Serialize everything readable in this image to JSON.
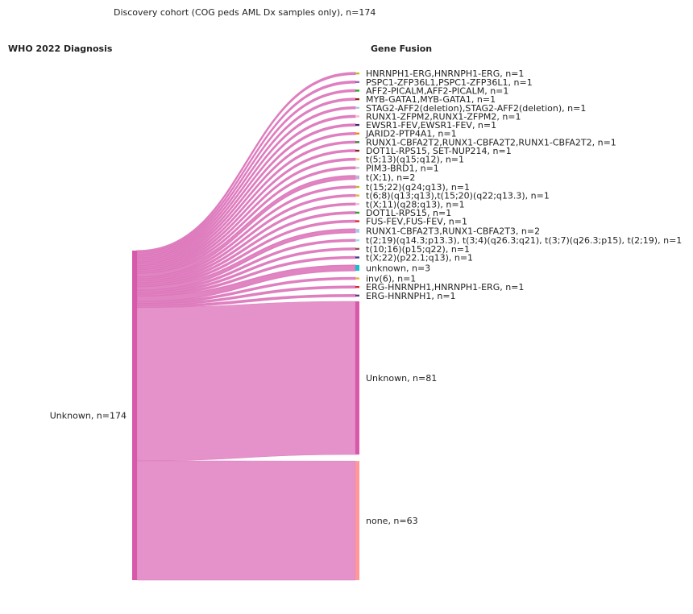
{
  "chart_data": {
    "type": "sankey",
    "title": "Discovery cohort (COG peds AML Dx samples only), n=174",
    "left_header": "WHO 2022 Diagnosis",
    "right_header": "Gene Fusion",
    "source": {
      "name": "Unknown",
      "label": "Unknown, n=174",
      "value": 174,
      "color": "#d65aa9"
    },
    "link_color": "#dd77bb",
    "targets": [
      {
        "name": "HNRNPH1-ERG,HNRNPH1-ERG",
        "label": "HNRNPH1-ERG,HNRNPH1-ERG, n=1",
        "value": 1,
        "color": "#bcbd22"
      },
      {
        "name": "PSPC1-ZFP36L1,PSPC1-ZFP36L1",
        "label": "PSPC1-ZFP36L1,PSPC1-ZFP36L1, n=1",
        "value": 1,
        "color": "#9467bd"
      },
      {
        "name": "AFF2-PICALM,AFF2-PICALM",
        "label": "AFF2-PICALM,AFF2-PICALM, n=1",
        "value": 1,
        "color": "#2ca02c"
      },
      {
        "name": "MYB-GATA1,MYB-GATA1",
        "label": "MYB-GATA1,MYB-GATA1, n=1",
        "value": 1,
        "color": "#8c2d19"
      },
      {
        "name": "STAG2-AFF2(deletion),STAG2-AFF2(deletion)",
        "label": "STAG2-AFF2(deletion),STAG2-AFF2(deletion), n=1",
        "value": 1,
        "color": "#aec7e8"
      },
      {
        "name": "RUNX1-ZFPM2,RUNX1-ZFPM2",
        "label": "RUNX1-ZFPM2,RUNX1-ZFPM2, n=1",
        "value": 1,
        "color": "#f7b6d2"
      },
      {
        "name": "EWSR1-FEV,EWSR1-FEV",
        "label": "EWSR1-FEV,EWSR1-FEV, n=1",
        "value": 1,
        "color": "#3b2a6b"
      },
      {
        "name": "JARID2-PTP4A1",
        "label": "JARID2-PTP4A1, n=1",
        "value": 1,
        "color": "#ff7f0e"
      },
      {
        "name": "RUNX1-CBFA2T2,RUNX1-CBFA2T2,RUNX1-CBFA2T2",
        "label": "RUNX1-CBFA2T2,RUNX1-CBFA2T2,RUNX1-CBFA2T2, n=1",
        "value": 1,
        "color": "#3a7d3a"
      },
      {
        "name": "DOT1L-RPS15, SET-NUP214",
        "label": "DOT1L-RPS15, SET-NUP214, n=1",
        "value": 1,
        "color": "#7f1f1f"
      },
      {
        "name": "t(5;13)(q15;q12)",
        "label": "t(5;13)(q15;q12), n=1",
        "value": 1,
        "color": "#f0c27a"
      },
      {
        "name": "PIM3-BRD1",
        "label": "PIM3-BRD1, n=1",
        "value": 1,
        "color": "#c7c7c7"
      },
      {
        "name": "t(X;1)",
        "label": "t(X;1), n=2",
        "value": 2,
        "color": "#c5b0d5"
      },
      {
        "name": "t(15;22)(q24;q13)",
        "label": "t(15;22)(q24;q13), n=1",
        "value": 1,
        "color": "#bcbd22"
      },
      {
        "name": "t(6;8)(q13;q13),t(15;20)(q22;q13.3)",
        "label": "t(6;8)(q13;q13),t(15;20)(q22;q13.3), n=1",
        "value": 1,
        "color": "#e8b040"
      },
      {
        "name": "t(X;11)(q28;q13)",
        "label": "t(X;11)(q28;q13), n=1",
        "value": 1,
        "color": "#f7b6d2"
      },
      {
        "name": "DOT1L-RPS15",
        "label": "DOT1L-RPS15, n=1",
        "value": 1,
        "color": "#2ca02c"
      },
      {
        "name": "FUS-FEV,FUS-FEV",
        "label": "FUS-FEV,FUS-FEV, n=1",
        "value": 1,
        "color": "#d62728"
      },
      {
        "name": "RUNX1-CBFA2T3,RUNX1-CBFA2T3",
        "label": "RUNX1-CBFA2T3,RUNX1-CBFA2T3, n=2",
        "value": 2,
        "color": "#aec7e8"
      },
      {
        "name": "t(2;19)(q14.3;p13.3), t(3;4)(q26.3;q21), t(3;7)(q26.3;p15), t(2;19)",
        "label": "t(2;19)(q14.3;p13.3), t(3;4)(q26.3;q21), t(3;7)(q26.3;p15), t(2;19), n=1",
        "value": 1,
        "color": "#9edae5"
      },
      {
        "name": "t(10;16)(p15;q22)",
        "label": "t(10;16)(p15;q22), n=1",
        "value": 1,
        "color": "#8c564b"
      },
      {
        "name": "t(X;22)(p22.1;q13)",
        "label": "t(X;22)(p22.1;q13), n=1",
        "value": 1,
        "color": "#3b3b8f"
      },
      {
        "name": "unknown",
        "label": "unknown, n=3",
        "value": 3,
        "color": "#17becf"
      },
      {
        "name": "inv(6)",
        "label": "inv(6), n=1",
        "value": 1,
        "color": "#e8b040"
      },
      {
        "name": "ERG-HNRNPH1,HNRNPH1-ERG",
        "label": "ERG-HNRNPH1,HNRNPH1-ERG, n=1",
        "value": 1,
        "color": "#d62728"
      },
      {
        "name": "ERG-HNRNPH1",
        "label": "ERG-HNRNPH1, n=1",
        "value": 1,
        "color": "#5a3a7a"
      },
      {
        "name": "Unknown",
        "label": "Unknown, n=81",
        "value": 81,
        "color": "#d65aa9"
      },
      {
        "name": "none",
        "label": "none, n=63",
        "value": 63,
        "color": "#ff9896"
      }
    ]
  }
}
